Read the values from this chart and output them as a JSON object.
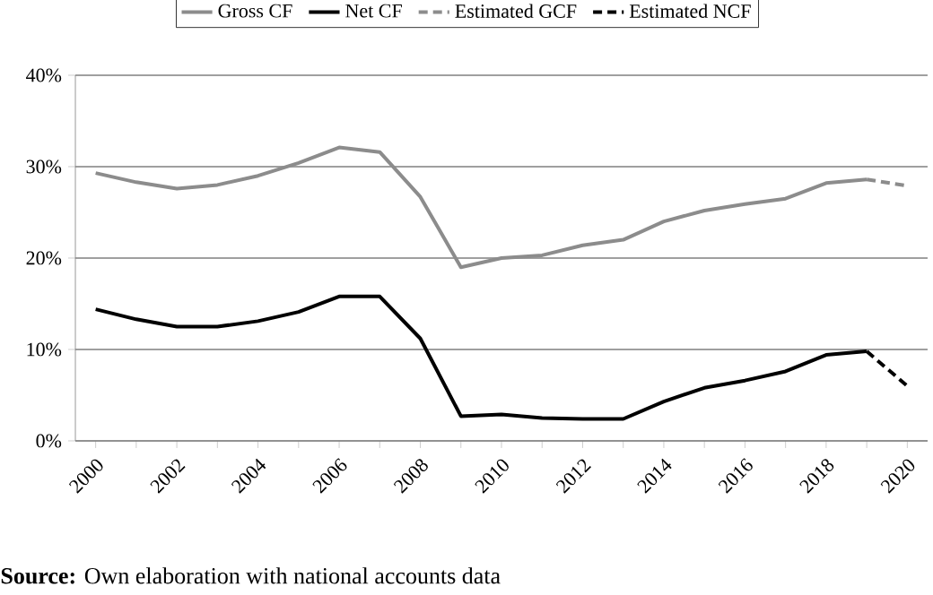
{
  "chart_data": {
    "type": "line",
    "categories": [
      "2000",
      null,
      "2002",
      null,
      "2004",
      null,
      "2006",
      null,
      "2008",
      null,
      "2010",
      null,
      "2012",
      null,
      "2014",
      null,
      "2016",
      null,
      "2018",
      null,
      "2020"
    ],
    "series": [
      {
        "name": "Gross CF",
        "color": "#8c8c8c",
        "line_style": "solid",
        "values": [
          29.3,
          28.3,
          27.6,
          28.0,
          29.0,
          30.4,
          32.1,
          31.6,
          26.7,
          19.0,
          20.0,
          20.3,
          21.4,
          22.0,
          24.0,
          25.2,
          25.9,
          26.5,
          28.2,
          28.6,
          null
        ]
      },
      {
        "name": "Net CF",
        "color": "#000000",
        "line_style": "solid",
        "values": [
          14.4,
          13.3,
          12.5,
          12.5,
          13.1,
          14.1,
          15.8,
          15.8,
          11.2,
          2.7,
          2.9,
          2.5,
          2.4,
          2.4,
          4.3,
          5.8,
          6.6,
          7.6,
          9.4,
          9.8,
          null
        ]
      },
      {
        "name": "Estimated GCF",
        "color": "#8c8c8c",
        "line_style": "dashed",
        "values": [
          null,
          null,
          null,
          null,
          null,
          null,
          null,
          null,
          null,
          null,
          null,
          null,
          null,
          null,
          null,
          null,
          null,
          null,
          null,
          28.6,
          27.9
        ]
      },
      {
        "name": "Estimated NCF",
        "color": "#000000",
        "line_style": "dashed",
        "values": [
          null,
          null,
          null,
          null,
          null,
          null,
          null,
          null,
          null,
          null,
          null,
          null,
          null,
          null,
          null,
          null,
          null,
          null,
          null,
          9.8,
          6.0
        ]
      }
    ],
    "ylim": [
      0,
      40
    ],
    "yticks": [
      {
        "value": 0,
        "label": "0%"
      },
      {
        "value": 10,
        "label": "10%"
      },
      {
        "value": 20,
        "label": "20%"
      },
      {
        "value": 30,
        "label": "30%"
      },
      {
        "value": 40,
        "label": "40%"
      }
    ],
    "grid": "y",
    "legend": "top",
    "marker": "none",
    "annotations": [
      "**Source:** Own elaboration with national accounts data"
    ]
  }
}
